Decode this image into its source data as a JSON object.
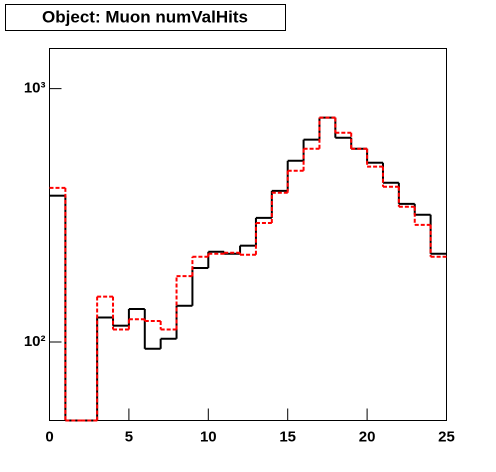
{
  "chart_data": {
    "type": "histogram",
    "title": "Object: Muon numValHits",
    "bins": [
      0,
      1,
      2,
      3,
      4,
      5,
      6,
      7,
      8,
      9,
      10,
      11,
      12,
      13,
      14,
      15,
      16,
      17,
      18,
      19,
      20,
      21,
      22,
      23,
      24,
      25
    ],
    "series": [
      {
        "color": "#000000",
        "linestyle": "solid",
        "values": [
          378,
          0,
          0,
          125,
          116,
          135,
          94,
          103,
          139,
          196,
          227,
          223,
          240,
          309,
          395,
          519,
          629,
          768,
          640,
          579,
          510,
          425,
          351,
          318,
          223
        ]
      },
      {
        "color": "#ff0000",
        "linestyle": "dashed",
        "values": [
          406,
          0,
          0,
          151,
          112,
          123,
          121,
          112,
          182,
          217,
          223,
          225,
          221,
          295,
          388,
          474,
          579,
          768,
          670,
          579,
          492,
          410,
          342,
          290,
          217
        ]
      }
    ],
    "xlim": [
      0,
      25
    ],
    "xticks": [
      0,
      5,
      10,
      15,
      20,
      25
    ],
    "ylim": [
      49,
      1440
    ],
    "log_y": true,
    "yticks": [
      {
        "value": 100,
        "label": "10²"
      },
      {
        "value": 1000,
        "label": "10³"
      }
    ]
  }
}
